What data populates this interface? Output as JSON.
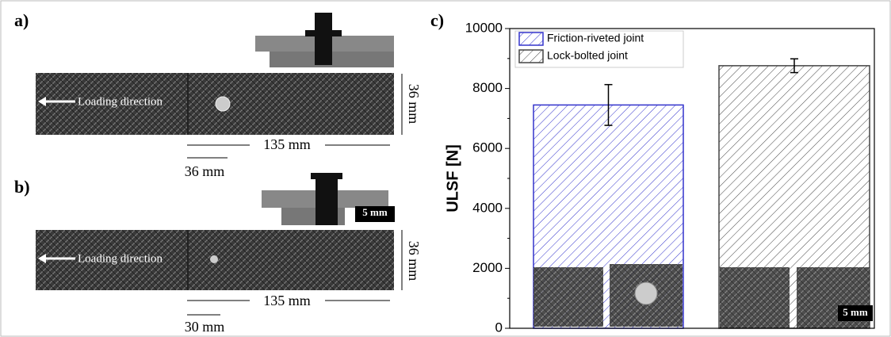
{
  "panel_a": {
    "label": "a)",
    "loading": "Loading direction",
    "width": "36 mm",
    "length": "135 mm",
    "spacing": "36 mm"
  },
  "panel_b": {
    "label": "b)",
    "loading": "Loading direction",
    "width": "36 mm",
    "length": "135 mm",
    "spacing": "30 mm",
    "scale_bar": "5 mm"
  },
  "chart_data": {
    "type": "bar",
    "panel_label": "c)",
    "y_label": "ULSF [N]",
    "scale_bar": "5 mm",
    "categories": [
      null
    ],
    "series": [
      {
        "name": "Friction-riveted joint",
        "color": "#3333cc",
        "values": [
          7450
        ],
        "errors": [
          680
        ]
      },
      {
        "name": "Lock-bolted joint",
        "color": "#444444",
        "values": [
          8760
        ],
        "errors": [
          230
        ]
      }
    ],
    "ylim": [
      0,
      10000
    ],
    "yticks": [
      0,
      2000,
      4000,
      6000,
      8000,
      10000
    ],
    "legend": "upper left"
  }
}
